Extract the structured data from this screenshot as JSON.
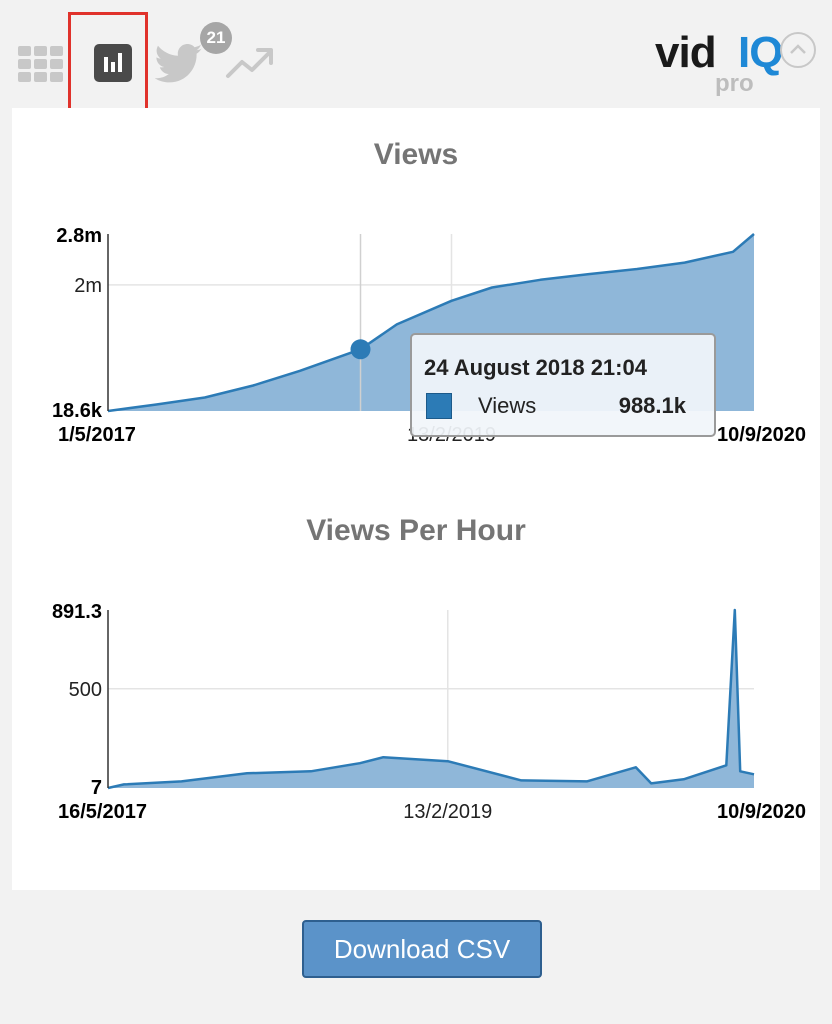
{
  "toolbar": {
    "tabs": [
      {
        "icon": "grid-icon",
        "selected": false
      },
      {
        "icon": "bar-chart-icon",
        "selected": true
      },
      {
        "icon": "twitter-icon",
        "selected": false,
        "badge": "21"
      },
      {
        "icon": "trending-icon",
        "selected": false
      }
    ],
    "twitter_badge": "21",
    "logo": {
      "main": "vid",
      "accent": "IQ",
      "tier": "pro"
    },
    "collapse_icon": "chevron-up-icon",
    "selection_color": "#e0322b"
  },
  "colors": {
    "series": "#2c7bb6",
    "fill": "#8fb7d9",
    "button": "#5b93c9"
  },
  "charts": {
    "views": {
      "title": "Views"
    },
    "vph": {
      "title": "Views Per Hour"
    }
  },
  "tooltip": {
    "title": "24 August 2018 21:04",
    "series_name": "Views",
    "value": "988.1k"
  },
  "chart_data": [
    {
      "type": "area",
      "title": "Views",
      "x_start_label": "1/5/2017",
      "x_mid_label": "13/2/2019",
      "x_end_label": "10/9/2020",
      "y_labels": {
        "max": "2.8m",
        "mid": "2m",
        "min": "18.6k"
      },
      "ylim": [
        18600,
        2800000
      ],
      "series": [
        {
          "name": "Views",
          "x": [
            "2017-05-01",
            "2017-08-01",
            "2017-11-01",
            "2018-02-01",
            "2018-05-01",
            "2018-08-24",
            "2018-11-01",
            "2019-02-13",
            "2019-05-01",
            "2019-08-01",
            "2019-11-01",
            "2020-02-01",
            "2020-05-01",
            "2020-08-01",
            "2020-09-10"
          ],
          "values": [
            18600,
            120000,
            230000,
            420000,
            650000,
            988100,
            1380000,
            1750000,
            1960000,
            2080000,
            2170000,
            2250000,
            2350000,
            2520000,
            2800000
          ]
        }
      ],
      "highlight": {
        "x": "2018-08-24",
        "value": 988100
      },
      "grid": true
    },
    {
      "type": "area",
      "title": "Views Per Hour",
      "x_start_label": "16/5/2017",
      "x_mid_label": "13/2/2019",
      "x_end_label": "10/9/2020",
      "y_labels": {
        "max": "891.3",
        "mid": "500",
        "min": "7"
      },
      "ylim": [
        7,
        891.3
      ],
      "series": [
        {
          "name": "Views Per Hour",
          "x": [
            "2017-05-16",
            "2017-06-15",
            "2017-10-01",
            "2018-02-01",
            "2018-06-01",
            "2018-09-01",
            "2018-10-15",
            "2019-02-13",
            "2019-07-01",
            "2019-11-01",
            "2020-02-01",
            "2020-03-01",
            "2020-05-01",
            "2020-07-20",
            "2020-08-05",
            "2020-08-15",
            "2020-09-10"
          ],
          "values": [
            7,
            25,
            40,
            80,
            90,
            130,
            160,
            140,
            45,
            40,
            110,
            30,
            50,
            120,
            891.3,
            90,
            75
          ]
        }
      ],
      "grid": true
    }
  ],
  "download": {
    "label": "Download CSV"
  }
}
